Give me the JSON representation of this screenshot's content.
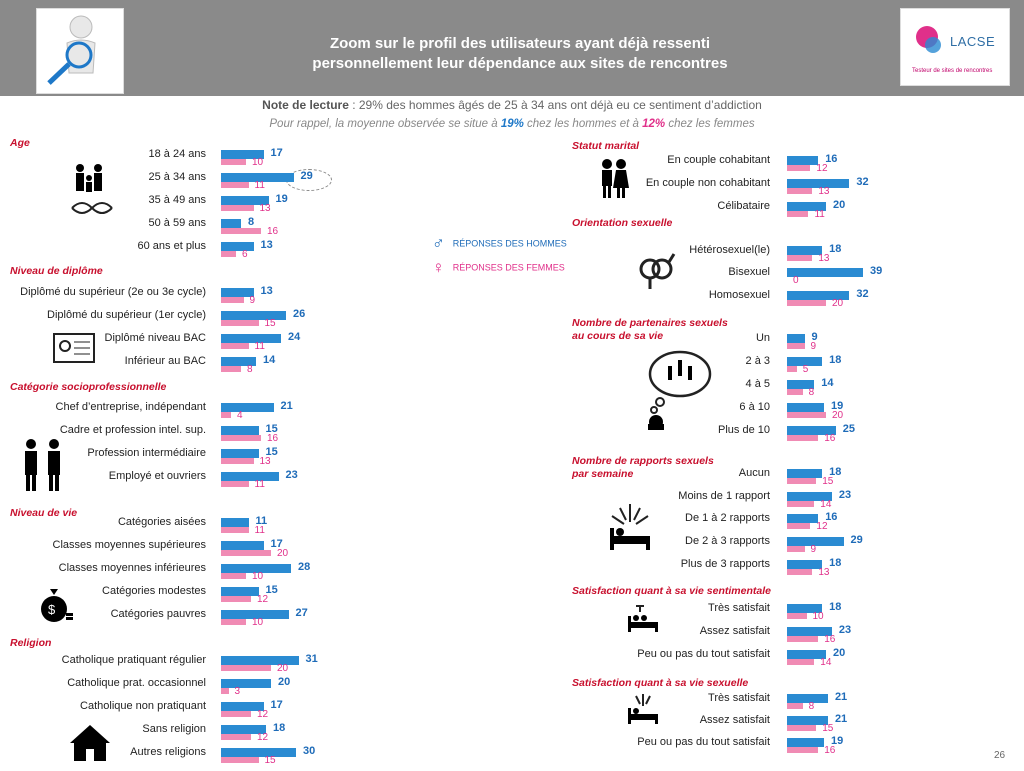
{
  "header": {
    "title_line1": "Zoom sur le profil des utilisateurs ayant déjà ressenti",
    "title_line2": "personnellement leur dépendance aux sites de rencontres",
    "logo_text": "LACSE",
    "logo_subtitle": "Testeur de sites de rencontres"
  },
  "note": {
    "label": "Note de lecture",
    "text": " : 29% des hommes âgés de 25 à 34 ans ont déjà eu ce sentiment d’addiction"
  },
  "reminder": {
    "part1": "Pour rappel, la moyenne observée se situe à ",
    "men_avg": "19%",
    "part2": " chez les hommes et à ",
    "women_avg": "12%",
    "part3": " chez les femmes"
  },
  "legend": {
    "men": "RÉPONSES DES HOMMES",
    "women": "RÉPONSES DES FEMMES"
  },
  "colors": {
    "men": "#2a8bd2",
    "women": "#f08bb4",
    "section": "#c8102e"
  },
  "page_number": "26",
  "chart_data": {
    "type": "bar",
    "series": [
      {
        "name": "RÉPONSES DES HOMMES"
      },
      {
        "name": "RÉPONSES DES FEMMES"
      }
    ],
    "sections": [
      {
        "title": "Age",
        "column": "left",
        "items": [
          {
            "label": "18 à 24 ans",
            "men": 17,
            "women": 10
          },
          {
            "label": "25 à 34 ans",
            "men": 29,
            "women": 11
          },
          {
            "label": "35 à 49 ans",
            "men": 19,
            "women": 13
          },
          {
            "label": "50 à 59 ans",
            "men": 8,
            "women": 16
          },
          {
            "label": "60 ans et plus",
            "men": 13,
            "women": 6
          }
        ]
      },
      {
        "title": "Niveau de diplôme",
        "column": "left",
        "items": [
          {
            "label": "Diplômé du supérieur (2e ou 3e cycle)",
            "men": 13,
            "women": 9
          },
          {
            "label": "Diplômé du supérieur (1er cycle)",
            "men": 26,
            "women": 15
          },
          {
            "label": "Diplômé niveau BAC",
            "men": 24,
            "women": 11
          },
          {
            "label": "Inférieur au BAC",
            "men": 14,
            "women": 8
          }
        ]
      },
      {
        "title": "Catégorie socioprofessionnelle",
        "column": "left",
        "items": [
          {
            "label": "Chef d’entreprise, indépendant",
            "men": 21,
            "women": 4
          },
          {
            "label": "Cadre et profession intel. sup.",
            "men": 15,
            "women": 16
          },
          {
            "label": "Profession intermédiaire",
            "men": 15,
            "women": 13
          },
          {
            "label": "Employé et ouvriers",
            "men": 23,
            "women": 11
          }
        ]
      },
      {
        "title": "Niveau de vie",
        "column": "left",
        "items": [
          {
            "label": "Catégories aisées",
            "men": 11,
            "women": 11
          },
          {
            "label": "Classes moyennes supérieures",
            "men": 17,
            "women": 20
          },
          {
            "label": "Classes moyennes inférieures",
            "men": 28,
            "women": 10
          },
          {
            "label": "Catégories modestes",
            "men": 15,
            "women": 12
          },
          {
            "label": "Catégories pauvres",
            "men": 27,
            "women": 10
          }
        ]
      },
      {
        "title": "Religion",
        "column": "left",
        "items": [
          {
            "label": "Catholique pratiquant régulier",
            "men": 31,
            "women": 20
          },
          {
            "label": "Catholique prat. occasionnel",
            "men": 20,
            "women": 3
          },
          {
            "label": "Catholique non pratiquant",
            "men": 17,
            "women": 12
          },
          {
            "label": "Sans religion",
            "men": 18,
            "women": 12
          },
          {
            "label": "Autres religions",
            "men": 30,
            "women": 15
          }
        ]
      },
      {
        "title": "Statut marital",
        "column": "right",
        "items": [
          {
            "label": "En couple cohabitant",
            "men": 16,
            "women": 12
          },
          {
            "label": "En couple non cohabitant",
            "men": 32,
            "women": 13
          },
          {
            "label": "Célibataire",
            "men": 20,
            "women": 11
          }
        ]
      },
      {
        "title": "Orientation sexuelle",
        "column": "right",
        "items": [
          {
            "label": "Hétérosexuel(le)",
            "men": 18,
            "women": 13
          },
          {
            "label": "Bisexuel",
            "men": 39,
            "women": 0
          },
          {
            "label": "Homosexuel",
            "men": 32,
            "women": 20
          }
        ]
      },
      {
        "title": "Nombre de partenaires sexuels au cours de sa vie",
        "column": "right",
        "items": [
          {
            "label": "Un",
            "men": 9,
            "women": 9
          },
          {
            "label": "2 à 3",
            "men": 18,
            "women": 5
          },
          {
            "label": "4 à 5",
            "men": 14,
            "women": 8
          },
          {
            "label": "6 à 10",
            "men": 19,
            "women": 20
          },
          {
            "label": "Plus de 10",
            "men": 25,
            "women": 16
          }
        ]
      },
      {
        "title": "Nombre de rapports sexuels par semaine",
        "column": "right",
        "items": [
          {
            "label": "Aucun",
            "men": 18,
            "women": 15
          },
          {
            "label": "Moins de 1 rapport",
            "men": 23,
            "women": 14
          },
          {
            "label": "De 1 à 2 rapports",
            "men": 16,
            "women": 12
          },
          {
            "label": "De 2 à 3 rapports",
            "men": 29,
            "women": 9
          },
          {
            "label": "Plus de 3 rapports",
            "men": 18,
            "women": 13
          }
        ]
      },
      {
        "title": "Satisfaction quant à sa vie sentimentale",
        "column": "right",
        "items": [
          {
            "label": "Très satisfait",
            "men": 18,
            "women": 10
          },
          {
            "label": "Assez satisfait",
            "men": 23,
            "women": 16
          },
          {
            "label": "Peu ou pas du tout satisfait",
            "men": 20,
            "women": 14
          }
        ]
      },
      {
        "title": "Satisfaction quant à sa vie sexuelle",
        "column": "right",
        "items": [
          {
            "label": "Très satisfait",
            "men": 21,
            "women": 8
          },
          {
            "label": "Assez satisfait",
            "men": 21,
            "women": 15
          },
          {
            "label": "Peu ou pas du tout satisfait",
            "men": 19,
            "women": 16
          }
        ]
      }
    ]
  }
}
